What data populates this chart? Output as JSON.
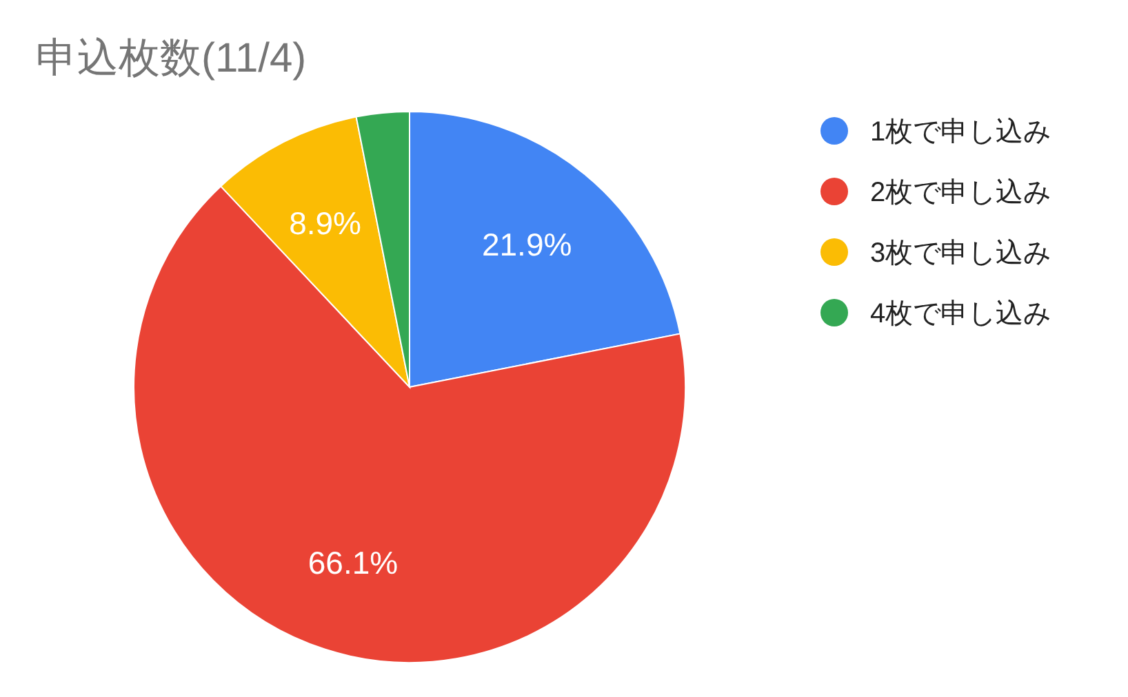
{
  "chart_data": {
    "type": "pie",
    "title": "申込枚数(11/4)",
    "categories": [
      "1枚で申し込み",
      "2枚で申し込み",
      "3枚で申し込み",
      "4枚で申し込み"
    ],
    "values": [
      21.9,
      66.1,
      8.9,
      3.1
    ],
    "value_labels": [
      "21.9%",
      "66.1%",
      "8.9%",
      null
    ],
    "colors": [
      "#4285f4",
      "#ea4335",
      "#fbbc04",
      "#34a853"
    ],
    "legend": "right"
  }
}
